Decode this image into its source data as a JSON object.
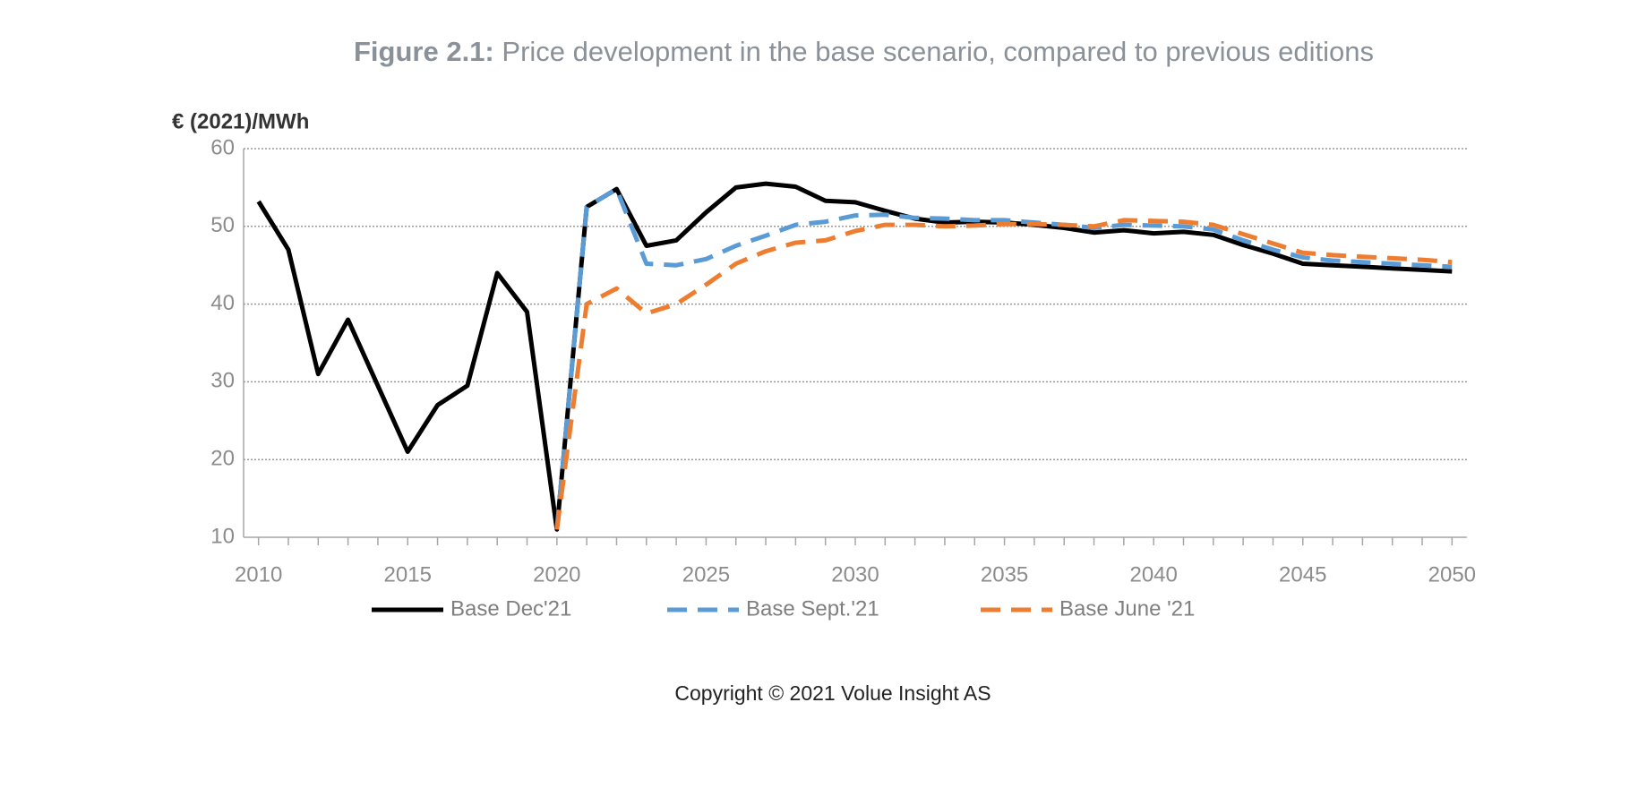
{
  "chart_data": {
    "type": "line",
    "title_label": "Figure 2.1:",
    "title": "Price development in the base scenario, compared to previous editions",
    "y_label": "€ (2021)/MWh",
    "footer": "Copyright © 2021  Volue Insight AS",
    "x": [
      2010,
      2011,
      2012,
      2013,
      2014,
      2015,
      2016,
      2017,
      2018,
      2019,
      2020,
      2021,
      2022,
      2023,
      2024,
      2025,
      2026,
      2027,
      2028,
      2029,
      2030,
      2031,
      2032,
      2033,
      2034,
      2035,
      2036,
      2037,
      2038,
      2039,
      2040,
      2041,
      2042,
      2043,
      2044,
      2045,
      2046,
      2047,
      2048,
      2049,
      2050
    ],
    "series": [
      {
        "name": "Base Dec'21",
        "color": "#000000",
        "dash": false,
        "values": [
          53.2,
          47,
          31,
          38,
          29.5,
          21,
          27,
          29.5,
          44,
          39,
          11,
          52.5,
          54.8,
          47.5,
          48.2,
          51.8,
          55,
          55.5,
          55.1,
          53.3,
          53.1,
          52,
          51,
          50.5,
          50.6,
          50.5,
          50.2,
          49.8,
          49.2,
          49.5,
          49.1,
          49.3,
          48.9,
          47.6,
          46.5,
          45.2,
          45,
          44.8,
          44.6,
          44.4,
          44.2
        ]
      },
      {
        "name": "Base Sept.'21",
        "color": "#5b9bd5",
        "dash": true,
        "values": [
          null,
          null,
          null,
          null,
          null,
          null,
          null,
          null,
          null,
          null,
          11,
          52.5,
          54.8,
          45.2,
          45,
          45.8,
          47.5,
          48.8,
          50.2,
          50.6,
          51.4,
          51.5,
          51.1,
          51,
          50.8,
          50.8,
          50.5,
          50.2,
          49.8,
          50.2,
          50.1,
          50,
          49.6,
          48.2,
          47,
          46,
          45.6,
          45.4,
          45.2,
          45,
          44.8
        ]
      },
      {
        "name": "Base June '21",
        "color": "#ed7d31",
        "dash": true,
        "values": [
          null,
          null,
          null,
          null,
          null,
          null,
          null,
          null,
          null,
          null,
          11,
          40,
          42,
          38.8,
          40,
          42.5,
          45.2,
          46.8,
          47.9,
          48.2,
          49.4,
          50.2,
          50.2,
          50,
          50.1,
          50.3,
          50.3,
          50.2,
          50,
          50.8,
          50.7,
          50.6,
          50.2,
          49,
          47.8,
          46.6,
          46.3,
          46.1,
          45.9,
          45.7,
          45.4
        ]
      }
    ],
    "xlim": [
      2009.5,
      2050.5
    ],
    "xticks": [
      2010,
      2015,
      2020,
      2025,
      2030,
      2035,
      2040,
      2045,
      2050
    ],
    "ylim": [
      10,
      60
    ],
    "yticks": [
      10,
      20,
      30,
      40,
      50,
      60
    ],
    "grid": true,
    "legend": "bottom"
  }
}
